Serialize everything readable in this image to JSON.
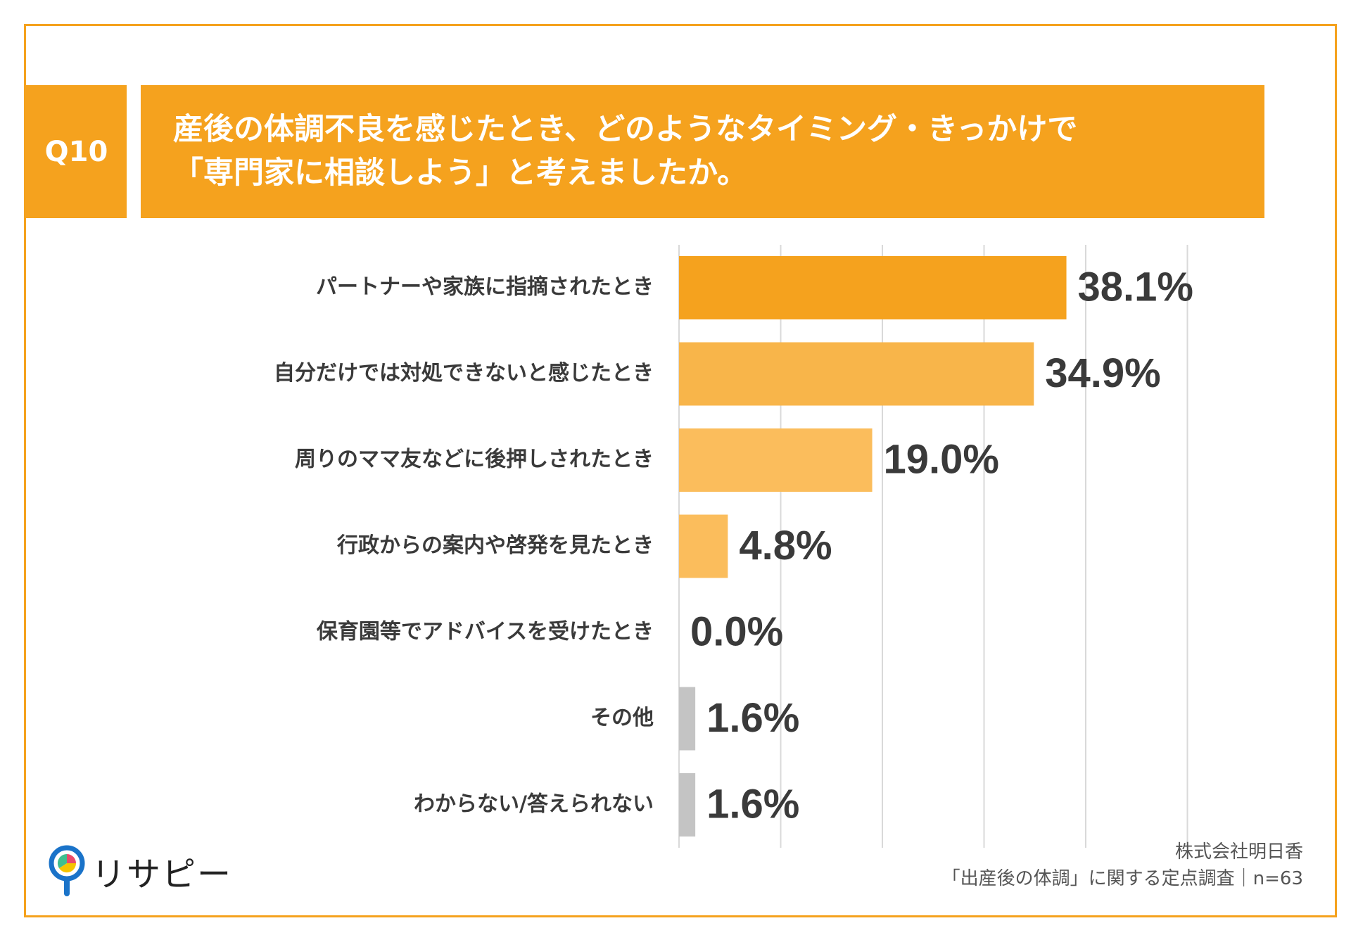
{
  "header": {
    "question_no": "Q10",
    "title_line1": "産後の体調不良を感じたとき、どのようなタイミング・きっかけで",
    "title_line2": "「専門家に相談しよう」と考えましたか。"
  },
  "colors": {
    "accent": "#f5a21e",
    "bars": [
      "#f5a21e",
      "#f8b54a",
      "#fbbd5c",
      "#fbbd5c",
      "#fbbd5c",
      "#c4c4c4",
      "#c4c4c4"
    ],
    "grid": "#d9d9d9",
    "text": "#3a3a3a"
  },
  "chart_data": {
    "type": "bar",
    "orientation": "horizontal",
    "categories": [
      "パートナーや家族に指摘されたとき",
      "自分だけでは対処できないと感じたとき",
      "周りのママ友などに後押しされたとき",
      "行政からの案内や啓発を見たとき",
      "保育園等でアドバイスを受けたとき",
      "その他",
      "わからない/答えられない"
    ],
    "values": [
      38.1,
      34.9,
      19.0,
      4.8,
      0.0,
      1.6,
      1.6
    ],
    "value_labels": [
      "38.1%",
      "34.9%",
      "19.0%",
      "4.8%",
      "0.0%",
      "1.6%",
      "1.6%"
    ],
    "xlim": [
      0,
      50
    ],
    "grid": true,
    "legend": "none"
  },
  "footer": {
    "logo_text": "リサピー",
    "source_line1": "株式会社明日香",
    "source_line2": "「出産後の体調」に関する定点調査｜n=63"
  }
}
